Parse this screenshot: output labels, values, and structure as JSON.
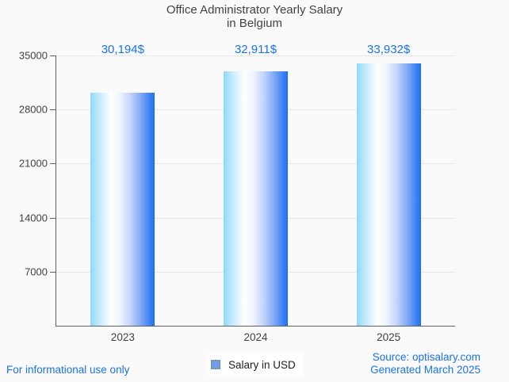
{
  "title": {
    "line1": "Office Administrator Yearly Salary",
    "line2": "in Belgium"
  },
  "chart_data": {
    "type": "bar",
    "title": "Office Administrator Yearly Salary in Belgium",
    "categories": [
      "2023",
      "2024",
      "2025"
    ],
    "series": [
      {
        "name": "Salary in USD",
        "values": [
          30194,
          32911,
          33932
        ]
      }
    ],
    "value_labels": [
      "30,194$",
      "32,911$",
      "33,932$"
    ],
    "xlabel": "",
    "ylabel": "",
    "ylim": [
      0,
      35000
    ],
    "yticks": [
      7000,
      14000,
      21000,
      28000,
      35000
    ],
    "grid": true,
    "legend_position": "bottom"
  },
  "legend": {
    "label": "Salary in USD",
    "marker_color": "#6d9eeb"
  },
  "footer": {
    "disclaimer": "For informational use only",
    "source_line1": "Source: optisalary.com",
    "source_line2": "Generated March 2025"
  },
  "colors": {
    "accent_text": "#1a73e8",
    "text_dark": "#424242",
    "background": "#fafafa",
    "axis": "#616161",
    "gridline": "#e8e8e8",
    "bar_gradient_start": "#8edafc",
    "bar_gradient_highlight": "#ffffff",
    "bar_gradient_end": "#1b6ef8"
  }
}
